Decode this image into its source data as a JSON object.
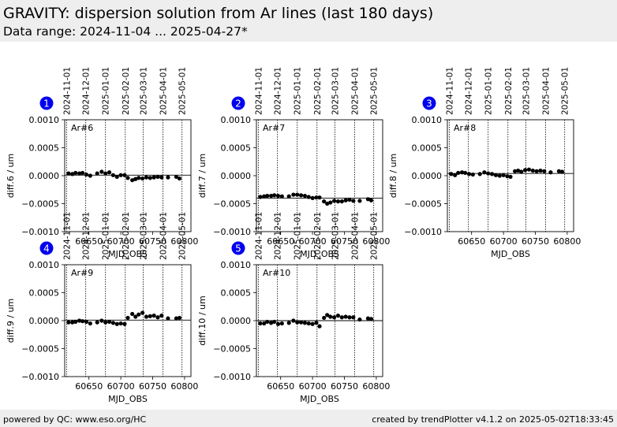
{
  "header": {
    "title": "GRAVITY: dispersion solution from Ar lines (last 180 days)",
    "subtitle": "Data range: 2024-11-04 ... 2025-04-27*"
  },
  "footer": {
    "left": "powered by QC: www.eso.org/HC",
    "right": "created by trendPlotter v4.1.2 on 2025-05-02T18:33:45"
  },
  "colors": {
    "badge": "#0000ee",
    "points": "#000000"
  },
  "chart_data": [
    {
      "type": "scatter",
      "index": "1",
      "label": "Ar#6",
      "xlabel": "MJD_OBS",
      "ylabel": "diff.6 / um",
      "xlim": [
        60612,
        60810
      ],
      "ylim": [
        -0.001,
        0.001
      ],
      "xticks": [
        60650,
        60700,
        60750,
        60800
      ],
      "yticks": [
        -0.001,
        -0.0005,
        0.0,
        0.0005,
        0.001
      ],
      "ytick_labels": [
        "−0.0010",
        "−0.0005",
        "0.0000",
        "0.0005",
        "0.0010"
      ],
      "date_ticks": [
        {
          "mjd": 60615,
          "label": "2024-11-01"
        },
        {
          "mjd": 60645,
          "label": "2024-12-01"
        },
        {
          "mjd": 60676,
          "label": "2025-01-01"
        },
        {
          "mjd": 60707,
          "label": "2025-02-01"
        },
        {
          "mjd": 60735,
          "label": "2025-03-01"
        },
        {
          "mjd": 60766,
          "label": "2025-04-01"
        },
        {
          "mjd": 60796,
          "label": "2025-05-01"
        }
      ],
      "reference_line": 1e-05,
      "x": [
        60618,
        60624,
        60629,
        60635,
        60640,
        60646,
        60652,
        60663,
        60670,
        60676,
        60682,
        60688,
        60694,
        60700,
        60706,
        60711,
        60718,
        60723,
        60728,
        60734,
        60740,
        60746,
        60752,
        60758,
        60764,
        60774,
        60787,
        60792
      ],
      "y": [
        4e-05,
        3e-05,
        5e-05,
        4e-05,
        5e-05,
        2e-05,
        0.0,
        4e-05,
        7e-05,
        4e-05,
        6e-05,
        1e-05,
        -2e-05,
        1e-05,
        1e-05,
        -4e-05,
        -8e-05,
        -6e-05,
        -4e-05,
        -5e-05,
        -3e-05,
        -4e-05,
        -3e-05,
        -2e-05,
        -3e-05,
        -3e-05,
        -2e-05,
        -5e-05
      ]
    },
    {
      "type": "scatter",
      "index": "2",
      "label": "Ar#7",
      "xlabel": "MJD_OBS",
      "ylabel": "diff.7 / um",
      "xlim": [
        60612,
        60810
      ],
      "ylim": [
        -0.001,
        0.001
      ],
      "xticks": [
        60650,
        60700,
        60750,
        60800
      ],
      "yticks": [
        -0.001,
        -0.0005,
        0.0,
        0.0005,
        0.001
      ],
      "ytick_labels": [
        "−0.0010",
        "−0.0005",
        "0.0000",
        "0.0005",
        "0.0010"
      ],
      "date_ticks": [
        {
          "mjd": 60615,
          "label": "2024-11-01"
        },
        {
          "mjd": 60645,
          "label": "2024-12-01"
        },
        {
          "mjd": 60676,
          "label": "2025-01-01"
        },
        {
          "mjd": 60707,
          "label": "2025-02-01"
        },
        {
          "mjd": 60735,
          "label": "2025-03-01"
        },
        {
          "mjd": 60766,
          "label": "2025-04-01"
        },
        {
          "mjd": 60796,
          "label": "2025-05-01"
        }
      ],
      "reference_line": -0.0004,
      "x": [
        60618,
        60624,
        60629,
        60635,
        60640,
        60646,
        60652,
        60663,
        60670,
        60676,
        60682,
        60688,
        60694,
        60700,
        60706,
        60711,
        60718,
        60723,
        60728,
        60734,
        60740,
        60746,
        60752,
        60758,
        60764,
        60774,
        60787,
        60792
      ],
      "y": [
        -0.00038,
        -0.00037,
        -0.00036,
        -0.00036,
        -0.00035,
        -0.00036,
        -0.00037,
        -0.00037,
        -0.00034,
        -0.00034,
        -0.00035,
        -0.00036,
        -0.00038,
        -0.0004,
        -0.00039,
        -0.00039,
        -0.00046,
        -0.0005,
        -0.00048,
        -0.00045,
        -0.00046,
        -0.00046,
        -0.00044,
        -0.00043,
        -0.00045,
        -0.00045,
        -0.00042,
        -0.00044
      ]
    },
    {
      "type": "scatter",
      "index": "3",
      "label": "Ar#8",
      "xlabel": "MJD_OBS",
      "ylabel": "diff.8 / um",
      "xlim": [
        60612,
        60810
      ],
      "ylim": [
        -0.001,
        0.001
      ],
      "xticks": [
        60650,
        60700,
        60750,
        60800
      ],
      "yticks": [
        -0.001,
        -0.0005,
        0.0,
        0.0005,
        0.001
      ],
      "ytick_labels": [
        "−0.0010",
        "−0.0005",
        "0.0000",
        "0.0005",
        "0.0010"
      ],
      "date_ticks": [
        {
          "mjd": 60615,
          "label": "2024-11-01"
        },
        {
          "mjd": 60645,
          "label": "2024-12-01"
        },
        {
          "mjd": 60676,
          "label": "2025-01-01"
        },
        {
          "mjd": 60707,
          "label": "2025-02-01"
        },
        {
          "mjd": 60735,
          "label": "2025-03-01"
        },
        {
          "mjd": 60766,
          "label": "2025-04-01"
        },
        {
          "mjd": 60796,
          "label": "2025-05-01"
        }
      ],
      "reference_line": 4e-05,
      "x": [
        60618,
        60624,
        60629,
        60635,
        60640,
        60646,
        60652,
        60663,
        60670,
        60676,
        60682,
        60688,
        60694,
        60700,
        60706,
        60711,
        60718,
        60723,
        60728,
        60734,
        60740,
        60746,
        60752,
        60758,
        60764,
        60774,
        60787,
        60792
      ],
      "y": [
        3e-05,
        1e-05,
        5e-05,
        6e-05,
        5e-05,
        3e-05,
        2e-05,
        3e-05,
        6e-05,
        4e-05,
        3e-05,
        1e-05,
        0.0,
        1e-05,
        -1e-05,
        -2e-05,
        8e-05,
        9e-05,
        7e-05,
        0.0001,
        0.00011,
        9e-05,
        8e-05,
        9e-05,
        8e-05,
        6e-05,
        8e-05,
        7e-05
      ]
    },
    {
      "type": "scatter",
      "index": "4",
      "label": "Ar#9",
      "xlabel": "MJD_OBS",
      "ylabel": "diff.9 / um",
      "xlim": [
        60612,
        60810
      ],
      "ylim": [
        -0.001,
        0.001
      ],
      "xticks": [
        60650,
        60700,
        60750,
        60800
      ],
      "yticks": [
        -0.001,
        -0.0005,
        0.0,
        0.0005,
        0.001
      ],
      "ytick_labels": [
        "−0.0010",
        "−0.0005",
        "0.0000",
        "0.0005",
        "0.0010"
      ],
      "date_ticks": [
        {
          "mjd": 60615,
          "label": "2024-11-01"
        },
        {
          "mjd": 60645,
          "label": "2024-12-01"
        },
        {
          "mjd": 60676,
          "label": "2025-01-01"
        },
        {
          "mjd": 60707,
          "label": "2025-02-01"
        },
        {
          "mjd": 60735,
          "label": "2025-03-01"
        },
        {
          "mjd": 60766,
          "label": "2025-04-01"
        },
        {
          "mjd": 60796,
          "label": "2025-05-01"
        }
      ],
      "reference_line": 1e-05,
      "x": [
        60618,
        60624,
        60629,
        60635,
        60640,
        60646,
        60652,
        60663,
        60670,
        60676,
        60682,
        60688,
        60694,
        60700,
        60706,
        60711,
        60718,
        60723,
        60728,
        60734,
        60740,
        60746,
        60752,
        60758,
        60764,
        60774,
        60787,
        60792
      ],
      "y": [
        -3e-05,
        -3e-05,
        -2e-05,
        0.0,
        -1e-05,
        -2e-05,
        -5e-05,
        -3e-05,
        0.0,
        -3e-05,
        -2e-05,
        -4e-05,
        -6e-05,
        -5e-05,
        -6e-05,
        5e-05,
        0.00012,
        7e-05,
        0.00011,
        0.00014,
        7e-05,
        8e-05,
        9e-05,
        6e-05,
        9e-05,
        4e-05,
        4e-05,
        5e-05
      ]
    },
    {
      "type": "scatter",
      "index": "5",
      "label": "Ar#10",
      "xlabel": "MJD_OBS",
      "ylabel": "diff.10 / um",
      "xlim": [
        60612,
        60810
      ],
      "ylim": [
        -0.001,
        0.001
      ],
      "xticks": [
        60650,
        60700,
        60750,
        60800
      ],
      "yticks": [
        -0.001,
        -0.0005,
        0.0,
        0.0005,
        0.001
      ],
      "ytick_labels": [
        "−0.0010",
        "−0.0005",
        "0.0000",
        "0.0005",
        "0.0010"
      ],
      "date_ticks": [
        {
          "mjd": 60615,
          "label": "2024-11-01"
        },
        {
          "mjd": 60645,
          "label": "2024-12-01"
        },
        {
          "mjd": 60676,
          "label": "2025-01-01"
        },
        {
          "mjd": 60707,
          "label": "2025-02-01"
        },
        {
          "mjd": 60735,
          "label": "2025-03-01"
        },
        {
          "mjd": 60766,
          "label": "2025-04-01"
        },
        {
          "mjd": 60796,
          "label": "2025-05-01"
        }
      ],
      "reference_line": 0.0,
      "x": [
        60618,
        60624,
        60629,
        60635,
        60640,
        60646,
        60652,
        60663,
        60670,
        60676,
        60682,
        60688,
        60694,
        60700,
        60706,
        60711,
        60718,
        60723,
        60728,
        60734,
        60740,
        60746,
        60752,
        60758,
        60764,
        60774,
        60787,
        60792
      ],
      "y": [
        -5e-05,
        -5e-05,
        -2e-05,
        -4e-05,
        -2e-05,
        -6e-05,
        -5e-05,
        -4e-05,
        0.0,
        -3e-05,
        -3e-05,
        -4e-05,
        -5e-05,
        -6e-05,
        -4e-05,
        -0.0001,
        5e-05,
        0.0001,
        7e-05,
        6e-05,
        9e-05,
        6e-05,
        7e-05,
        6e-05,
        6e-05,
        2e-05,
        4e-05,
        3e-05
      ]
    }
  ]
}
